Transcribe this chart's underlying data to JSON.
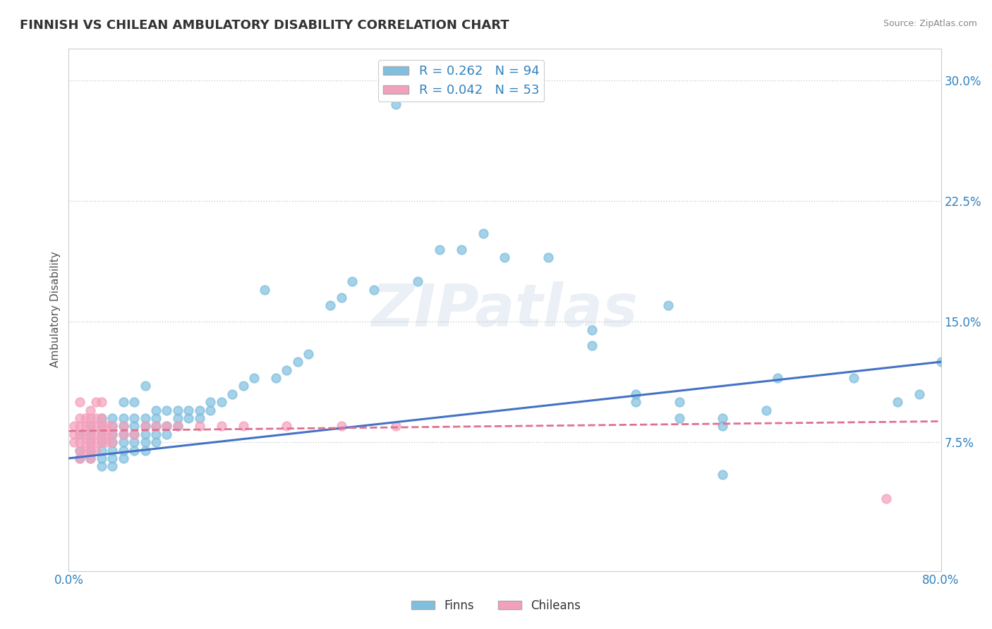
{
  "title": "FINNISH VS CHILEAN AMBULATORY DISABILITY CORRELATION CHART",
  "source": "Source: ZipAtlas.com",
  "ylabel": "Ambulatory Disability",
  "xlim": [
    0.0,
    0.8
  ],
  "ylim": [
    -0.005,
    0.32
  ],
  "xticks": [
    0.0,
    0.1,
    0.2,
    0.3,
    0.4,
    0.5,
    0.6,
    0.7,
    0.8
  ],
  "yticks": [
    0.075,
    0.15,
    0.225,
    0.3
  ],
  "ytick_labels": [
    "7.5%",
    "15.0%",
    "22.5%",
    "30.0%"
  ],
  "xtick_labels": [
    "0.0%",
    "",
    "",
    "",
    "",
    "",
    "",
    "",
    "80.0%"
  ],
  "finn_color": "#7fbfdf",
  "chilean_color": "#f4a0bb",
  "finn_line_color": "#4472c4",
  "chilean_line_color": "#e07090",
  "finn_R": 0.262,
  "finn_N": 94,
  "chilean_R": 0.042,
  "chilean_N": 53,
  "background_color": "#ffffff",
  "grid_color": "#cccccc",
  "finn_x": [
    0.01,
    0.01,
    0.01,
    0.02,
    0.02,
    0.02,
    0.02,
    0.02,
    0.03,
    0.03,
    0.03,
    0.03,
    0.03,
    0.03,
    0.03,
    0.04,
    0.04,
    0.04,
    0.04,
    0.04,
    0.04,
    0.04,
    0.05,
    0.05,
    0.05,
    0.05,
    0.05,
    0.05,
    0.05,
    0.06,
    0.06,
    0.06,
    0.06,
    0.06,
    0.06,
    0.07,
    0.07,
    0.07,
    0.07,
    0.07,
    0.07,
    0.08,
    0.08,
    0.08,
    0.08,
    0.08,
    0.09,
    0.09,
    0.09,
    0.1,
    0.1,
    0.1,
    0.11,
    0.11,
    0.12,
    0.12,
    0.13,
    0.13,
    0.14,
    0.15,
    0.16,
    0.17,
    0.18,
    0.19,
    0.2,
    0.21,
    0.22,
    0.24,
    0.25,
    0.26,
    0.28,
    0.3,
    0.32,
    0.34,
    0.36,
    0.38,
    0.4,
    0.44,
    0.48,
    0.52,
    0.56,
    0.6,
    0.64,
    0.55,
    0.6,
    0.65,
    0.48,
    0.52,
    0.56,
    0.6,
    0.72,
    0.76,
    0.78,
    0.8
  ],
  "finn_y": [
    0.065,
    0.07,
    0.08,
    0.065,
    0.07,
    0.075,
    0.08,
    0.085,
    0.06,
    0.065,
    0.07,
    0.075,
    0.08,
    0.085,
    0.09,
    0.06,
    0.065,
    0.07,
    0.075,
    0.08,
    0.085,
    0.09,
    0.065,
    0.07,
    0.075,
    0.08,
    0.085,
    0.09,
    0.1,
    0.07,
    0.075,
    0.08,
    0.085,
    0.09,
    0.1,
    0.07,
    0.075,
    0.08,
    0.085,
    0.09,
    0.11,
    0.075,
    0.08,
    0.085,
    0.09,
    0.095,
    0.08,
    0.085,
    0.095,
    0.085,
    0.09,
    0.095,
    0.09,
    0.095,
    0.09,
    0.095,
    0.095,
    0.1,
    0.1,
    0.105,
    0.11,
    0.115,
    0.17,
    0.115,
    0.12,
    0.125,
    0.13,
    0.16,
    0.165,
    0.175,
    0.17,
    0.285,
    0.175,
    0.195,
    0.195,
    0.205,
    0.19,
    0.19,
    0.145,
    0.1,
    0.09,
    0.085,
    0.095,
    0.16,
    0.09,
    0.115,
    0.135,
    0.105,
    0.1,
    0.055,
    0.115,
    0.1,
    0.105,
    0.125
  ],
  "chilean_x": [
    0.005,
    0.005,
    0.005,
    0.01,
    0.01,
    0.01,
    0.01,
    0.01,
    0.01,
    0.01,
    0.015,
    0.015,
    0.015,
    0.015,
    0.015,
    0.02,
    0.02,
    0.02,
    0.02,
    0.02,
    0.02,
    0.02,
    0.025,
    0.025,
    0.025,
    0.025,
    0.025,
    0.025,
    0.03,
    0.03,
    0.03,
    0.03,
    0.03,
    0.035,
    0.035,
    0.035,
    0.04,
    0.04,
    0.04,
    0.05,
    0.05,
    0.06,
    0.07,
    0.08,
    0.09,
    0.1,
    0.12,
    0.14,
    0.16,
    0.2,
    0.25,
    0.3,
    0.75
  ],
  "chilean_y": [
    0.075,
    0.08,
    0.085,
    0.065,
    0.07,
    0.075,
    0.08,
    0.085,
    0.09,
    0.1,
    0.07,
    0.075,
    0.08,
    0.085,
    0.09,
    0.065,
    0.07,
    0.075,
    0.08,
    0.085,
    0.09,
    0.095,
    0.07,
    0.075,
    0.08,
    0.085,
    0.09,
    0.1,
    0.075,
    0.08,
    0.085,
    0.09,
    0.1,
    0.075,
    0.08,
    0.085,
    0.075,
    0.08,
    0.085,
    0.08,
    0.085,
    0.08,
    0.085,
    0.085,
    0.085,
    0.085,
    0.085,
    0.085,
    0.085,
    0.085,
    0.085,
    0.085,
    0.04
  ],
  "finn_trend_x": [
    0.0,
    0.8
  ],
  "finn_trend_y": [
    0.065,
    0.125
  ],
  "chilean_trend_x": [
    0.0,
    0.8
  ],
  "chilean_trend_y": [
    0.082,
    0.088
  ]
}
